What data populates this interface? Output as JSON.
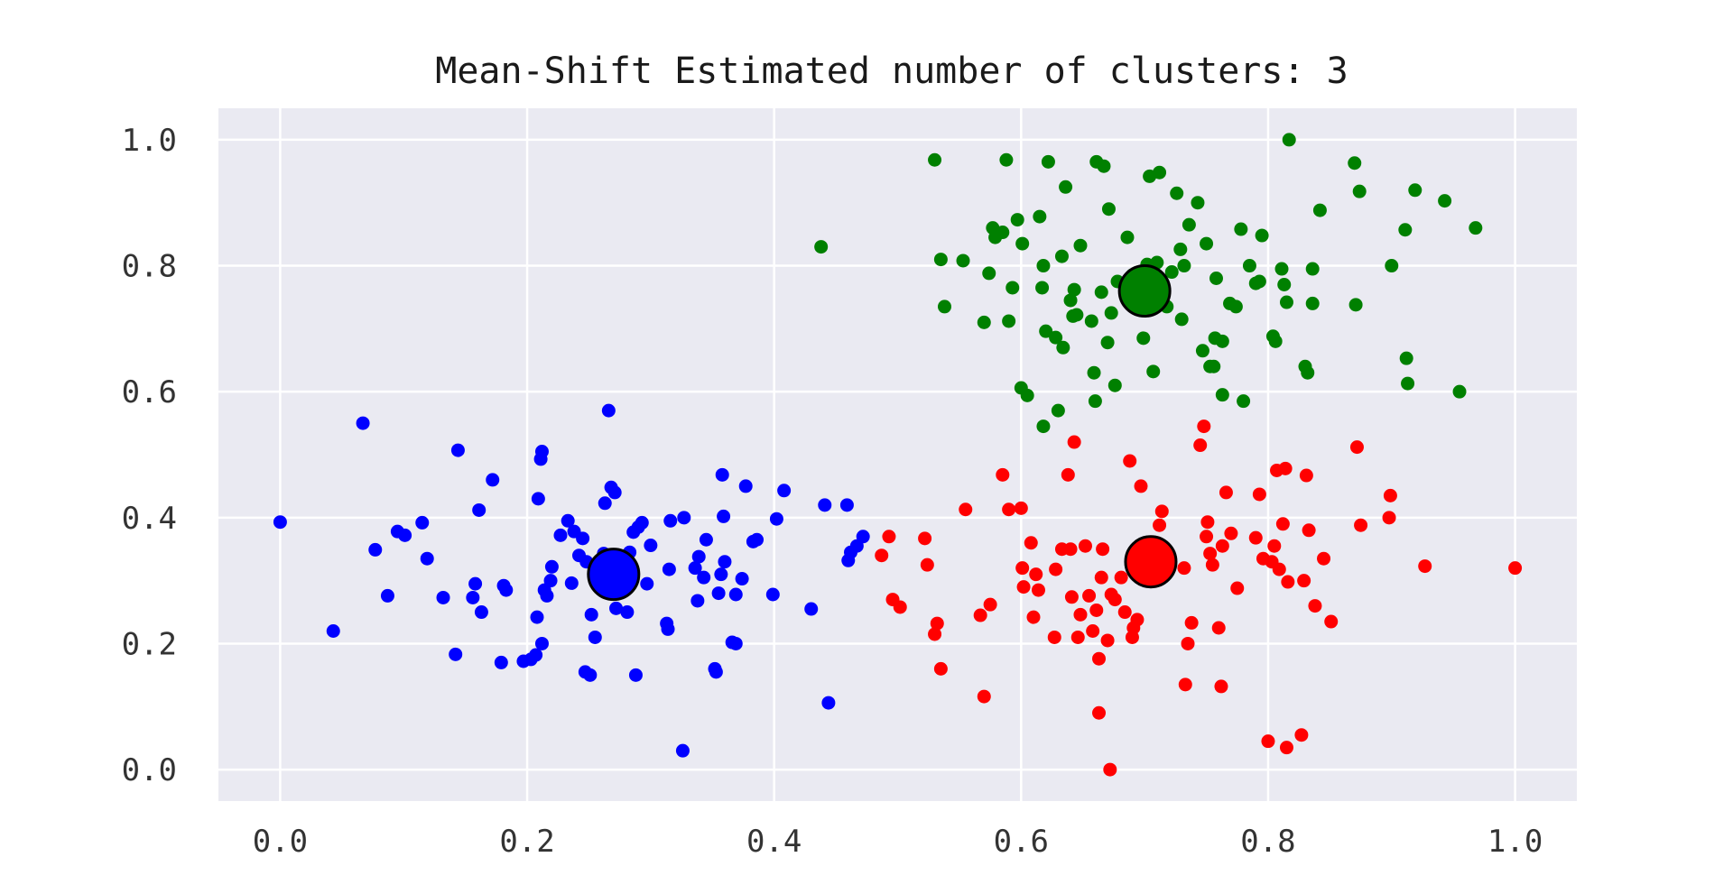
{
  "chart_data": {
    "type": "scatter",
    "title": "Mean-Shift Estimated number of clusters: 3",
    "xlabel": "",
    "ylabel": "",
    "xlim": [
      -0.05,
      1.05
    ],
    "ylim": [
      -0.05,
      1.05
    ],
    "xticks": [
      "0.0",
      "0.2",
      "0.4",
      "0.6",
      "0.8",
      "1.0"
    ],
    "yticks": [
      "0.0",
      "0.2",
      "0.4",
      "0.6",
      "0.8",
      "1.0"
    ],
    "grid": true,
    "legend": "none",
    "background_color": "#eaeaf2",
    "grid_color": "#ffffff",
    "series": [
      {
        "color": "#0000ff",
        "center": [
          0.27,
          0.31
        ],
        "points": [
          [
            0.0,
            0.393
          ],
          [
            0.043,
            0.22
          ],
          [
            0.067,
            0.55
          ],
          [
            0.077,
            0.349
          ],
          [
            0.087,
            0.276
          ],
          [
            0.095,
            0.378
          ],
          [
            0.101,
            0.372
          ],
          [
            0.115,
            0.392
          ],
          [
            0.119,
            0.335
          ],
          [
            0.132,
            0.273
          ],
          [
            0.142,
            0.183
          ],
          [
            0.144,
            0.507
          ],
          [
            0.156,
            0.273
          ],
          [
            0.158,
            0.295
          ],
          [
            0.161,
            0.412
          ],
          [
            0.163,
            0.25
          ],
          [
            0.172,
            0.46
          ],
          [
            0.179,
            0.17
          ],
          [
            0.181,
            0.292
          ],
          [
            0.183,
            0.285
          ],
          [
            0.197,
            0.172
          ],
          [
            0.203,
            0.175
          ],
          [
            0.207,
            0.182
          ],
          [
            0.208,
            0.242
          ],
          [
            0.209,
            0.43
          ],
          [
            0.211,
            0.493
          ],
          [
            0.212,
            0.505
          ],
          [
            0.212,
            0.2
          ],
          [
            0.214,
            0.285
          ],
          [
            0.216,
            0.276
          ],
          [
            0.219,
            0.3
          ],
          [
            0.22,
            0.322
          ],
          [
            0.227,
            0.372
          ],
          [
            0.233,
            0.395
          ],
          [
            0.236,
            0.296
          ],
          [
            0.238,
            0.378
          ],
          [
            0.242,
            0.34
          ],
          [
            0.245,
            0.367
          ],
          [
            0.247,
            0.155
          ],
          [
            0.248,
            0.33
          ],
          [
            0.251,
            0.15
          ],
          [
            0.252,
            0.246
          ],
          [
            0.255,
            0.21
          ],
          [
            0.257,
            0.325
          ],
          [
            0.262,
            0.343
          ],
          [
            0.263,
            0.423
          ],
          [
            0.266,
            0.57
          ],
          [
            0.268,
            0.448
          ],
          [
            0.271,
            0.44
          ],
          [
            0.272,
            0.256
          ],
          [
            0.275,
            0.29
          ],
          [
            0.281,
            0.25
          ],
          [
            0.283,
            0.345
          ],
          [
            0.286,
            0.377
          ],
          [
            0.288,
            0.15
          ],
          [
            0.29,
            0.385
          ],
          [
            0.293,
            0.392
          ],
          [
            0.297,
            0.295
          ],
          [
            0.3,
            0.356
          ],
          [
            0.313,
            0.232
          ],
          [
            0.314,
            0.223
          ],
          [
            0.315,
            0.318
          ],
          [
            0.316,
            0.395
          ],
          [
            0.326,
            0.03
          ],
          [
            0.327,
            0.4
          ],
          [
            0.336,
            0.32
          ],
          [
            0.338,
            0.268
          ],
          [
            0.339,
            0.338
          ],
          [
            0.343,
            0.305
          ],
          [
            0.345,
            0.365
          ],
          [
            0.352,
            0.16
          ],
          [
            0.353,
            0.155
          ],
          [
            0.355,
            0.28
          ],
          [
            0.357,
            0.31
          ],
          [
            0.358,
            0.468
          ],
          [
            0.359,
            0.402
          ],
          [
            0.36,
            0.33
          ],
          [
            0.366,
            0.202
          ],
          [
            0.369,
            0.2
          ],
          [
            0.369,
            0.278
          ],
          [
            0.374,
            0.303
          ],
          [
            0.377,
            0.45
          ],
          [
            0.383,
            0.362
          ],
          [
            0.386,
            0.365
          ],
          [
            0.399,
            0.278
          ],
          [
            0.402,
            0.398
          ],
          [
            0.408,
            0.443
          ],
          [
            0.43,
            0.255
          ],
          [
            0.441,
            0.42
          ],
          [
            0.444,
            0.106
          ],
          [
            0.459,
            0.42
          ],
          [
            0.46,
            0.332
          ],
          [
            0.462,
            0.345
          ],
          [
            0.467,
            0.355
          ],
          [
            0.472,
            0.37
          ]
        ]
      },
      {
        "color": "#ff0000",
        "center": [
          0.705,
          0.33
        ],
        "points": [
          [
            0.487,
            0.34
          ],
          [
            0.493,
            0.37
          ],
          [
            0.496,
            0.27
          ],
          [
            0.502,
            0.258
          ],
          [
            0.522,
            0.367
          ],
          [
            0.524,
            0.325
          ],
          [
            0.53,
            0.215
          ],
          [
            0.532,
            0.232
          ],
          [
            0.535,
            0.16
          ],
          [
            0.555,
            0.413
          ],
          [
            0.567,
            0.245
          ],
          [
            0.57,
            0.116
          ],
          [
            0.575,
            0.262
          ],
          [
            0.585,
            0.468
          ],
          [
            0.59,
            0.413
          ],
          [
            0.6,
            0.415
          ],
          [
            0.601,
            0.32
          ],
          [
            0.602,
            0.29
          ],
          [
            0.608,
            0.36
          ],
          [
            0.61,
            0.242
          ],
          [
            0.612,
            0.31
          ],
          [
            0.614,
            0.285
          ],
          [
            0.627,
            0.21
          ],
          [
            0.628,
            0.318
          ],
          [
            0.633,
            0.35
          ],
          [
            0.638,
            0.468
          ],
          [
            0.64,
            0.35
          ],
          [
            0.641,
            0.274
          ],
          [
            0.643,
            0.52
          ],
          [
            0.646,
            0.21
          ],
          [
            0.648,
            0.246
          ],
          [
            0.652,
            0.355
          ],
          [
            0.655,
            0.276
          ],
          [
            0.658,
            0.22
          ],
          [
            0.661,
            0.253
          ],
          [
            0.663,
            0.176
          ],
          [
            0.663,
            0.09
          ],
          [
            0.665,
            0.305
          ],
          [
            0.666,
            0.35
          ],
          [
            0.67,
            0.205
          ],
          [
            0.672,
            0.0
          ],
          [
            0.673,
            0.278
          ],
          [
            0.676,
            0.27
          ],
          [
            0.681,
            0.305
          ],
          [
            0.684,
            0.25
          ],
          [
            0.688,
            0.49
          ],
          [
            0.69,
            0.21
          ],
          [
            0.691,
            0.225
          ],
          [
            0.694,
            0.238
          ],
          [
            0.697,
            0.45
          ],
          [
            0.7,
            0.31
          ],
          [
            0.703,
            0.34
          ],
          [
            0.71,
            0.36
          ],
          [
            0.712,
            0.388
          ],
          [
            0.714,
            0.41
          ],
          [
            0.72,
            0.33
          ],
          [
            0.732,
            0.32
          ],
          [
            0.733,
            0.135
          ],
          [
            0.735,
            0.2
          ],
          [
            0.738,
            0.233
          ],
          [
            0.745,
            0.515
          ],
          [
            0.748,
            0.545
          ],
          [
            0.75,
            0.37
          ],
          [
            0.751,
            0.393
          ],
          [
            0.753,
            0.343
          ],
          [
            0.755,
            0.325
          ],
          [
            0.76,
            0.225
          ],
          [
            0.762,
            0.132
          ],
          [
            0.763,
            0.355
          ],
          [
            0.766,
            0.44
          ],
          [
            0.77,
            0.375
          ],
          [
            0.775,
            0.288
          ],
          [
            0.79,
            0.368
          ],
          [
            0.793,
            0.437
          ],
          [
            0.796,
            0.335
          ],
          [
            0.8,
            0.045
          ],
          [
            0.803,
            0.33
          ],
          [
            0.805,
            0.355
          ],
          [
            0.807,
            0.475
          ],
          [
            0.809,
            0.318
          ],
          [
            0.812,
            0.39
          ],
          [
            0.814,
            0.478
          ],
          [
            0.815,
            0.035
          ],
          [
            0.816,
            0.298
          ],
          [
            0.827,
            0.055
          ],
          [
            0.829,
            0.3
          ],
          [
            0.831,
            0.467
          ],
          [
            0.833,
            0.38
          ],
          [
            0.838,
            0.26
          ],
          [
            0.845,
            0.335
          ],
          [
            0.851,
            0.235
          ],
          [
            0.872,
            0.512
          ],
          [
            0.875,
            0.388
          ],
          [
            0.898,
            0.4
          ],
          [
            0.899,
            0.435
          ],
          [
            0.927,
            0.323
          ],
          [
            1.0,
            0.32
          ]
        ]
      },
      {
        "color": "#008000",
        "center": [
          0.7,
          0.76
        ],
        "points": [
          [
            0.438,
            0.83
          ],
          [
            0.53,
            0.968
          ],
          [
            0.535,
            0.81
          ],
          [
            0.538,
            0.735
          ],
          [
            0.553,
            0.808
          ],
          [
            0.57,
            0.71
          ],
          [
            0.574,
            0.788
          ],
          [
            0.577,
            0.86
          ],
          [
            0.579,
            0.845
          ],
          [
            0.585,
            0.853
          ],
          [
            0.588,
            0.968
          ],
          [
            0.59,
            0.712
          ],
          [
            0.593,
            0.765
          ],
          [
            0.597,
            0.873
          ],
          [
            0.6,
            0.606
          ],
          [
            0.601,
            0.835
          ],
          [
            0.605,
            0.594
          ],
          [
            0.615,
            0.878
          ],
          [
            0.617,
            0.765
          ],
          [
            0.618,
            0.8
          ],
          [
            0.618,
            0.545
          ],
          [
            0.62,
            0.696
          ],
          [
            0.622,
            0.965
          ],
          [
            0.628,
            0.686
          ],
          [
            0.63,
            0.57
          ],
          [
            0.633,
            0.815
          ],
          [
            0.634,
            0.67
          ],
          [
            0.636,
            0.925
          ],
          [
            0.64,
            0.745
          ],
          [
            0.642,
            0.72
          ],
          [
            0.643,
            0.762
          ],
          [
            0.645,
            0.722
          ],
          [
            0.648,
            0.832
          ],
          [
            0.657,
            0.712
          ],
          [
            0.659,
            0.63
          ],
          [
            0.66,
            0.585
          ],
          [
            0.661,
            0.965
          ],
          [
            0.665,
            0.758
          ],
          [
            0.667,
            0.958
          ],
          [
            0.67,
            0.678
          ],
          [
            0.671,
            0.89
          ],
          [
            0.673,
            0.725
          ],
          [
            0.676,
            0.61
          ],
          [
            0.678,
            0.775
          ],
          [
            0.686,
            0.845
          ],
          [
            0.69,
            0.785
          ],
          [
            0.696,
            0.76
          ],
          [
            0.699,
            0.685
          ],
          [
            0.702,
            0.802
          ],
          [
            0.704,
            0.942
          ],
          [
            0.707,
            0.632
          ],
          [
            0.71,
            0.805
          ],
          [
            0.712,
            0.948
          ],
          [
            0.718,
            0.735
          ],
          [
            0.722,
            0.79
          ],
          [
            0.726,
            0.915
          ],
          [
            0.729,
            0.826
          ],
          [
            0.73,
            0.715
          ],
          [
            0.732,
            0.8
          ],
          [
            0.736,
            0.865
          ],
          [
            0.743,
            0.9
          ],
          [
            0.747,
            0.665
          ],
          [
            0.75,
            0.835
          ],
          [
            0.753,
            0.64
          ],
          [
            0.756,
            0.64
          ],
          [
            0.757,
            0.685
          ],
          [
            0.758,
            0.78
          ],
          [
            0.763,
            0.595
          ],
          [
            0.763,
            0.68
          ],
          [
            0.769,
            0.74
          ],
          [
            0.774,
            0.735
          ],
          [
            0.778,
            0.858
          ],
          [
            0.78,
            0.585
          ],
          [
            0.785,
            0.8
          ],
          [
            0.79,
            0.772
          ],
          [
            0.793,
            0.775
          ],
          [
            0.795,
            0.848
          ],
          [
            0.804,
            0.688
          ],
          [
            0.806,
            0.68
          ],
          [
            0.811,
            0.795
          ],
          [
            0.813,
            0.77
          ],
          [
            0.815,
            0.742
          ],
          [
            0.817,
            1.0
          ],
          [
            0.83,
            0.64
          ],
          [
            0.832,
            0.63
          ],
          [
            0.836,
            0.795
          ],
          [
            0.836,
            0.74
          ],
          [
            0.842,
            0.888
          ],
          [
            0.87,
            0.963
          ],
          [
            0.871,
            0.738
          ],
          [
            0.874,
            0.918
          ],
          [
            0.9,
            0.8
          ],
          [
            0.911,
            0.857
          ],
          [
            0.912,
            0.653
          ],
          [
            0.913,
            0.613
          ],
          [
            0.919,
            0.92
          ],
          [
            0.943,
            0.903
          ],
          [
            0.955,
            0.6
          ],
          [
            0.968,
            0.86
          ]
        ]
      }
    ]
  }
}
